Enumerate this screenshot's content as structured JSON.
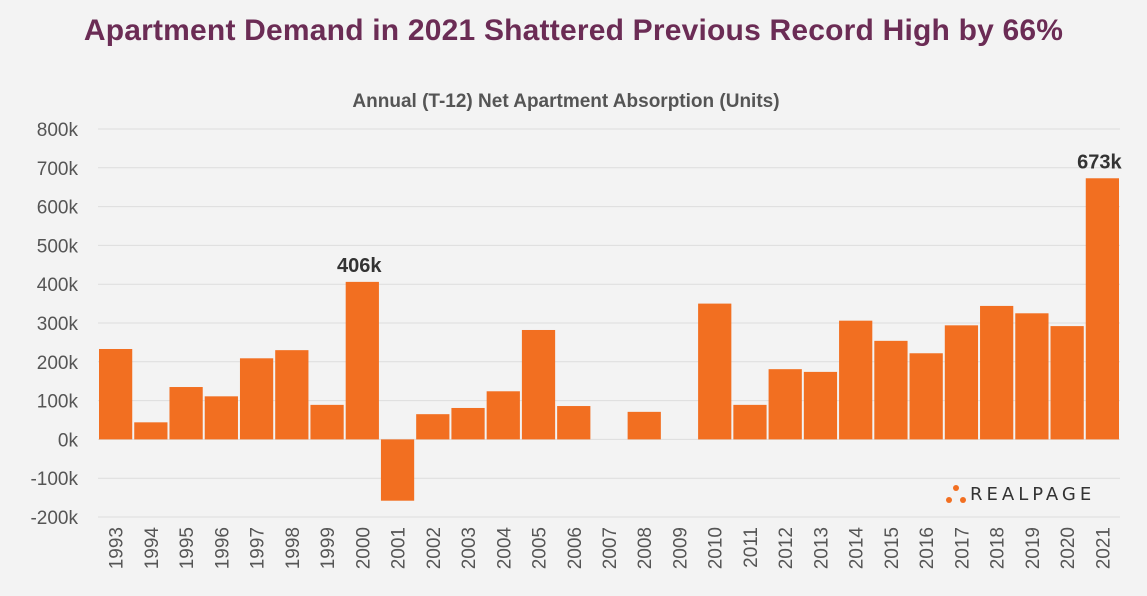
{
  "chart_data": {
    "type": "bar",
    "title": "Apartment Demand in 2021 Shattered Previous Record High by 66%",
    "subtitle": "Annual (T-12) Net Apartment Absorption (Units)",
    "categories": [
      "1993",
      "1994",
      "1995",
      "1996",
      "1997",
      "1998",
      "1999",
      "2000",
      "2001",
      "2002",
      "2003",
      "2004",
      "2005",
      "2006",
      "2007",
      "2008",
      "2009",
      "2010",
      "2011",
      "2012",
      "2013",
      "2014",
      "2015",
      "2016",
      "2017",
      "2018",
      "2019",
      "2020",
      "2021"
    ],
    "values": [
      233000,
      44000,
      135000,
      111000,
      209000,
      230000,
      89000,
      406000,
      -158000,
      65000,
      81000,
      124000,
      282000,
      86000,
      0,
      71000,
      0,
      350000,
      89000,
      181000,
      174000,
      306000,
      254000,
      222000,
      294000,
      344000,
      325000,
      292000,
      673000
    ],
    "ylim": [
      -200000,
      800000
    ],
    "yticks": [
      800000,
      700000,
      600000,
      500000,
      400000,
      300000,
      200000,
      100000,
      0,
      -100000,
      -200000
    ],
    "ytick_labels": [
      "800k",
      "700k",
      "600k",
      "500k",
      "400k",
      "300k",
      "200k",
      "100k",
      "0k",
      "-100k",
      "-200k"
    ],
    "data_labels": [
      {
        "category": "2000",
        "text": "406k"
      },
      {
        "category": "2021",
        "text": "673k"
      }
    ],
    "bar_color": "#f26f21",
    "grid": true
  },
  "logo": {
    "text": "REALPAGE",
    "dot_color": "#f26f21"
  }
}
